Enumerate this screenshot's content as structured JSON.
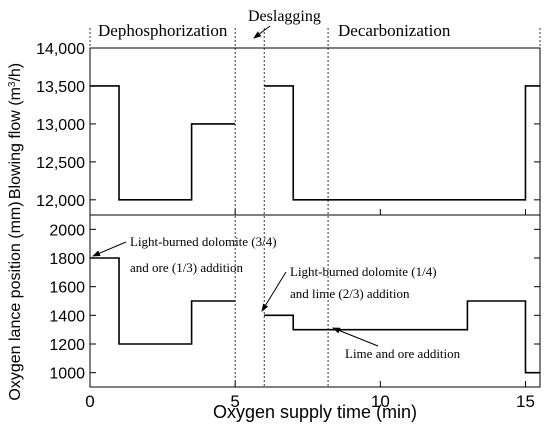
{
  "chart_data": [
    {
      "type": "line",
      "panel": "top",
      "ylabel_main": "Blowing flow (m",
      "ylabel_sup": "3",
      "ylabel_end": "/h)",
      "ylim": [
        11800,
        14000
      ],
      "yticks": [
        12000,
        12500,
        13000,
        13500,
        14000
      ],
      "yticklabels": [
        "12,000",
        "12,500",
        "13,000",
        "13,500",
        "14,000"
      ],
      "segments": [
        {
          "x": [
            0,
            1,
            1,
            3.5,
            3.5,
            5
          ],
          "y": [
            13500,
            13500,
            12000,
            12000,
            13000,
            13000
          ]
        },
        {
          "x": [
            6,
            7,
            7,
            15,
            15,
            15.5
          ],
          "y": [
            13500,
            13500,
            12000,
            12000,
            13500,
            13500
          ]
        }
      ]
    },
    {
      "type": "line",
      "panel": "bottom",
      "ylabel": "Oxygen lance position (mm)",
      "ylim": [
        900,
        2100
      ],
      "yticks": [
        1000,
        1200,
        1400,
        1600,
        1800,
        2000
      ],
      "yticklabels": [
        "1000",
        "1200",
        "1400",
        "1600",
        "1800",
        "2000"
      ],
      "segments": [
        {
          "x": [
            0,
            1,
            1,
            3.5,
            3.5,
            5
          ],
          "y": [
            1800,
            1800,
            1200,
            1200,
            1500,
            1500
          ]
        },
        {
          "x": [
            6,
            6.2,
            6.2,
            7,
            7,
            13,
            13,
            15,
            15,
            15.5
          ],
          "y": [
            1400,
            1400,
            1400,
            1400,
            1300,
            1300,
            1500,
            1500,
            1000,
            1000
          ]
        }
      ]
    }
  ],
  "shared": {
    "xlabel": "Oxygen supply time (min)",
    "xlim": [
      0,
      15.5
    ],
    "xticks": [
      0,
      5,
      10,
      15
    ],
    "xticklabels": [
      "0",
      "5",
      "10",
      "15"
    ],
    "vlines": [
      5,
      6,
      8.2
    ],
    "stages": [
      {
        "label": "Dephosphorization"
      },
      {
        "label": "Deslagging"
      },
      {
        "label": "Decarbonization"
      }
    ],
    "annotations": [
      {
        "line1": "Light-burned dolomite (3/4)",
        "line2": "and ore (1/3) addition"
      },
      {
        "line1": "Light-burned dolomite (1/4)",
        "line2": "and lime (2/3) addition"
      },
      {
        "line1": "Lime and ore addition",
        "line2": ""
      }
    ]
  }
}
